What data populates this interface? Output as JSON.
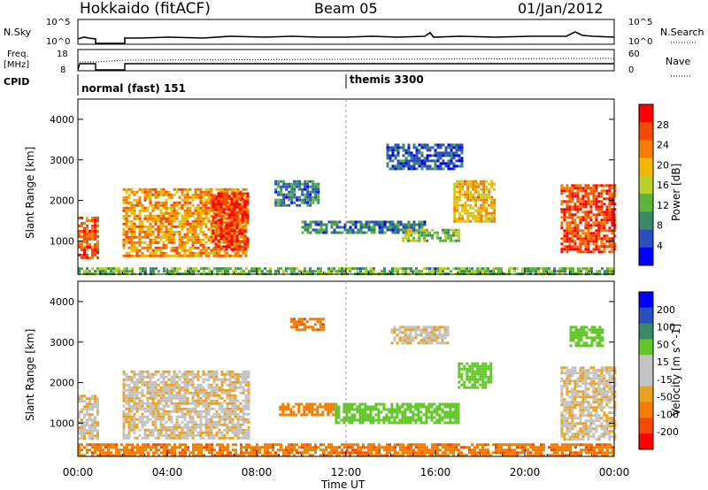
{
  "header": {
    "station": "Hokkaido (fitACF)",
    "beam": "Beam 05",
    "date": "01/Jan/2012"
  },
  "nsky_panel": {
    "left_label": "N.Sky",
    "right_label": "N.Search",
    "left_ticks": [
      "10^5",
      "10^0"
    ],
    "right_ticks": [
      "10^5",
      "10^0"
    ]
  },
  "freq_panel": {
    "left_label_line1": "Freq.",
    "left_label_line2": "[MHz]",
    "right_label": "Nave",
    "left_ticks": [
      "18",
      "8"
    ],
    "right_ticks": [
      "60",
      "0"
    ]
  },
  "cpid_panel": {
    "label": "CPID",
    "programs": [
      {
        "name": "normal (fast) 151",
        "start_hour": 0
      },
      {
        "name": "themis 3300",
        "start_hour": 12
      }
    ]
  },
  "x_axis": {
    "label": "Time UT",
    "ticks": [
      "00:00",
      "04:00",
      "08:00",
      "12:00",
      "16:00",
      "20:00",
      "00:00"
    ]
  },
  "colors": {
    "power": [
      "#0000ff",
      "#2c4fbf",
      "#3a8a6a",
      "#5fb43c",
      "#b9d22a",
      "#f2b700",
      "#f47c00",
      "#f24a00",
      "#ff0000"
    ],
    "velocity": [
      "#ff0000",
      "#f24a00",
      "#f47c00",
      "#e9a320",
      "#c3c3c3",
      "#c3c3c3",
      "#63c72c",
      "#3a8a6a",
      "#2c4fbf",
      "#0000ff"
    ]
  },
  "chart_data": [
    {
      "type": "line",
      "title": "N.Sky / N.Search",
      "x_range_hours": [
        0,
        24
      ],
      "series": [
        {
          "name": "N.Sky",
          "x": [
            0,
            1,
            2,
            4,
            8,
            12,
            16,
            20,
            22,
            24
          ],
          "y": [
            10,
            null,
            10,
            12,
            14,
            12,
            16,
            12,
            30,
            15
          ]
        },
        {
          "name": "N.Search",
          "x": [
            0,
            24
          ],
          "y": [
            1,
            1
          ]
        }
      ]
    },
    {
      "type": "line",
      "title": "Freq. / Nave",
      "ylim_freq": [
        8,
        18
      ],
      "ylim_nave": [
        0,
        60
      ],
      "series": [
        {
          "name": "Freq. [MHz]",
          "x": [
            0,
            1,
            2,
            24
          ],
          "y": [
            11,
            null,
            11,
            11
          ]
        },
        {
          "name": "Nave",
          "x": [
            0,
            1,
            2,
            24
          ],
          "y": [
            33,
            null,
            33,
            33
          ]
        }
      ]
    },
    {
      "type": "heatmap",
      "title": "Power",
      "ylabel": "Slant Range [km]",
      "xlabel": "Time UT",
      "xlim": [
        0,
        24
      ],
      "ylim": [
        180,
        4500
      ],
      "y_ticks": [
        1000,
        2000,
        3000,
        4000
      ],
      "colorbar": {
        "label": "Power [dB]",
        "ticks": [
          4,
          8,
          12,
          16,
          20,
          24,
          28
        ],
        "range": [
          0,
          32
        ]
      },
      "data_gap_hours": [
        0.9,
        2.0
      ],
      "regions": [
        {
          "t": [
            0.0,
            0.9
          ],
          "r": [
            600,
            1600
          ],
          "value": 26
        },
        {
          "t": [
            2.0,
            7.5
          ],
          "r": [
            600,
            2300
          ],
          "value": 22
        },
        {
          "t": [
            6.0,
            7.6
          ],
          "r": [
            800,
            2200
          ],
          "value": 28
        },
        {
          "t": [
            8.8,
            10.8
          ],
          "r": [
            1900,
            2500
          ],
          "value": 8
        },
        {
          "t": [
            10.0,
            15.5
          ],
          "r": [
            1200,
            1500
          ],
          "value": 8
        },
        {
          "t": [
            14.5,
            17.0
          ],
          "r": [
            1000,
            1300
          ],
          "value": 14
        },
        {
          "t": [
            13.8,
            17.2
          ],
          "r": [
            2800,
            3400
          ],
          "value": 6
        },
        {
          "t": [
            16.8,
            18.6
          ],
          "r": [
            1500,
            2500
          ],
          "value": 20
        },
        {
          "t": [
            21.6,
            24.0
          ],
          "r": [
            700,
            2400
          ],
          "value": 27
        },
        {
          "t": [
            0.0,
            24.0
          ],
          "r": [
            180,
            350
          ],
          "value": 12
        }
      ]
    },
    {
      "type": "heatmap",
      "title": "Velocity",
      "ylabel": "Slant Range [km]",
      "xlabel": "Time UT",
      "xlim": [
        0,
        24
      ],
      "ylim": [
        180,
        4500
      ],
      "y_ticks": [
        1000,
        2000,
        3000,
        4000
      ],
      "colorbar": {
        "label": "Velocity [m s^-1]",
        "ticks": [
          200,
          100,
          50,
          15,
          -15,
          -50,
          -100,
          -200
        ]
      },
      "regions": [
        {
          "t": [
            0.0,
            0.9
          ],
          "r": [
            600,
            1700
          ],
          "value": 0
        },
        {
          "t": [
            2.0,
            7.6
          ],
          "r": [
            600,
            2300
          ],
          "value": 0
        },
        {
          "t": [
            9.5,
            11.0
          ],
          "r": [
            3300,
            3600
          ],
          "value": -40
        },
        {
          "t": [
            9.0,
            11.5
          ],
          "r": [
            1200,
            1500
          ],
          "value": -30
        },
        {
          "t": [
            11.5,
            17.0
          ],
          "r": [
            1000,
            1500
          ],
          "value": 30
        },
        {
          "t": [
            14.0,
            16.5
          ],
          "r": [
            3000,
            3400
          ],
          "value": 0
        },
        {
          "t": [
            17.0,
            18.5
          ],
          "r": [
            1900,
            2500
          ],
          "value": 30
        },
        {
          "t": [
            21.6,
            24.0
          ],
          "r": [
            600,
            2400
          ],
          "value": 0
        },
        {
          "t": [
            22.0,
            23.5
          ],
          "r": [
            2900,
            3400
          ],
          "value": 35
        },
        {
          "t": [
            0.0,
            24.0
          ],
          "r": [
            180,
            500
          ],
          "value": -40
        }
      ]
    }
  ]
}
